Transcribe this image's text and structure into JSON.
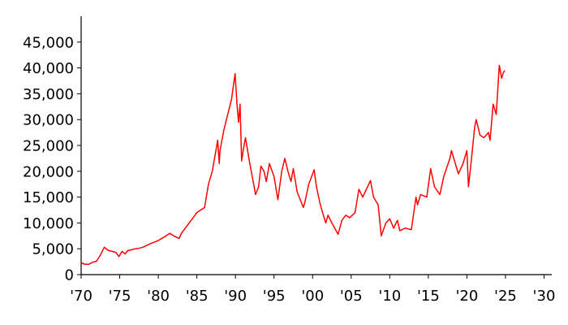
{
  "chart_data": {
    "type": "line",
    "x": [
      1970,
      1970.5,
      1971,
      1971.5,
      1972,
      1972.5,
      1973,
      1973.5,
      1974,
      1974.5,
      1974.9,
      1975.3,
      1975.7,
      1976,
      1977,
      1977.5,
      1978,
      1979,
      1980,
      1981,
      1981.5,
      1982,
      1982.7,
      1983,
      1984,
      1984.5,
      1985,
      1985.5,
      1986,
      1986.5,
      1987,
      1987.7,
      1987.9,
      1988,
      1988.5,
      1989,
      1989.5,
      1989.95,
      1990.2,
      1990.4,
      1990.6,
      1990.8,
      1991,
      1991.3,
      1991.8,
      1992.3,
      1992.6,
      1993,
      1993.3,
      1993.7,
      1994,
      1994.4,
      1995,
      1995.5,
      1996,
      1996.4,
      1996.8,
      1997.2,
      1997.5,
      1998,
      1998.8,
      1999,
      1999.5,
      2000.2,
      2000.5,
      2001,
      2001.7,
      2002,
      2002.5,
      2003.3,
      2003.8,
      2004.3,
      2004.8,
      2005.5,
      2006,
      2006.5,
      2007.5,
      2007.9,
      2008.5,
      2008.9,
      2009.5,
      2010,
      2010.5,
      2011,
      2011.3,
      2012,
      2012.8,
      2013.4,
      2013.6,
      2014,
      2014.8,
      2015.3,
      2015.8,
      2016.5,
      2017,
      2017.8,
      2018,
      2018.9,
      2019.5,
      2020,
      2020.2,
      2020.6,
      2021,
      2021.2,
      2021.7,
      2022.2,
      2022.8,
      2023,
      2023.4,
      2023.8,
      2024.2,
      2024.5,
      2024.7,
      2024.9
    ],
    "series": [
      {
        "color": "#ff0000",
        "values": [
          2300,
          2000,
          2000,
          2400,
          2600,
          3800,
          5300,
          4700,
          4500,
          4300,
          3500,
          4500,
          4000,
          4600,
          5000,
          5100,
          5300,
          6000,
          6600,
          7500,
          8000,
          7500,
          7000,
          8000,
          10000,
          11000,
          12000,
          12500,
          13000,
          17500,
          20000,
          26000,
          21500,
          24000,
          28000,
          31000,
          34000,
          38900,
          33000,
          29500,
          33000,
          22000,
          24000,
          26500,
          22000,
          18000,
          15500,
          17000,
          21000,
          20000,
          18000,
          21500,
          19000,
          14500,
          20000,
          22500,
          20000,
          18000,
          20500,
          16000,
          13000,
          14000,
          17500,
          20300,
          17000,
          13500,
          10000,
          11500,
          10000,
          7800,
          10500,
          11500,
          11000,
          12000,
          16500,
          15000,
          18200,
          15000,
          13500,
          7500,
          10000,
          10800,
          9000,
          10500,
          8500,
          9000,
          8700,
          15000,
          13500,
          15500,
          15000,
          20500,
          17000,
          15500,
          19000,
          22500,
          24000,
          19500,
          21500,
          24000,
          17000,
          22500,
          28500,
          30000,
          27000,
          26500,
          27500,
          26000,
          33000,
          31000,
          40500,
          38000,
          39000,
          39500
        ]
      }
    ],
    "xlim": [
      1970,
      2031
    ],
    "xticks": [
      {
        "value": 1970,
        "label": "'70"
      },
      {
        "value": 1975,
        "label": "'75"
      },
      {
        "value": 1980,
        "label": "'80"
      },
      {
        "value": 1985,
        "label": "'85"
      },
      {
        "value": 1990,
        "label": "'90"
      },
      {
        "value": 1995,
        "label": "'95"
      },
      {
        "value": 2000,
        "label": "'00"
      },
      {
        "value": 2005,
        "label": "'05"
      },
      {
        "value": 2010,
        "label": "'10"
      },
      {
        "value": 2015,
        "label": "'15"
      },
      {
        "value": 2020,
        "label": "'20"
      },
      {
        "value": 2025,
        "label": "'25"
      },
      {
        "value": 2030,
        "label": "'30"
      }
    ],
    "ylim": [
      0,
      50000
    ],
    "yticks": [
      0,
      {
        "value": 5000,
        "label": "5,000"
      },
      {
        "value": 10000,
        "label": "10,000"
      },
      {
        "value": 15000,
        "label": "15,000"
      },
      {
        "value": 20000,
        "label": "20,000"
      },
      {
        "value": 25000,
        "label": "25,000"
      },
      {
        "value": 30000,
        "label": "30,000"
      },
      {
        "value": 35000,
        "label": "35,000"
      },
      {
        "value": 40000,
        "label": "40,000"
      },
      {
        "value": 45000,
        "label": "45,000"
      }
    ],
    "grid": false
  }
}
